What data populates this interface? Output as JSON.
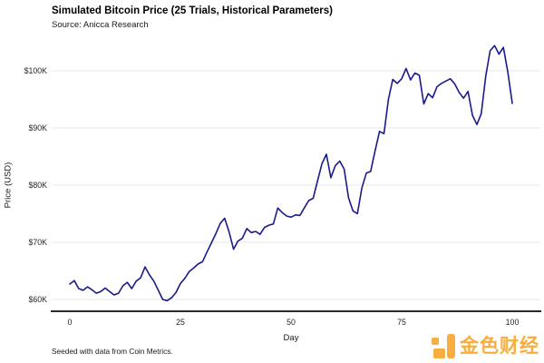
{
  "header": {
    "title": "Simulated Bitcoin Price (25 Trials, Historical Parameters)",
    "source": "Source: Anicca Research"
  },
  "chart_data": {
    "type": "line",
    "title": "Simulated Bitcoin Price (25 Trials, Historical Parameters)",
    "subtitle": "Source: Anicca Research",
    "xlabel": "Day",
    "ylabel": "Price (USD)",
    "x_ticks": {
      "values": [
        0,
        25,
        50,
        75,
        100
      ],
      "labels": [
        "0",
        "25",
        "50",
        "75",
        "100"
      ]
    },
    "y_ticks": {
      "values": [
        100,
        90,
        80,
        70,
        60
      ],
      "labels": [
        "$100K",
        "$90K",
        "$80K",
        "$70K",
        "$60K"
      ]
    },
    "x_range": [
      0,
      100
    ],
    "grid": true,
    "legend_position": "none",
    "line_color": "#1a1a8c",
    "grid_color": "#e7e7e7",
    "axis_color": "#2b2b2b",
    "series": [
      {
        "name": "simulated-price-trial",
        "x_start_day": 0,
        "x_step_days": 1,
        "values_usd_k": [
          62.7,
          63.3,
          61.9,
          61.6,
          62.2,
          61.7,
          61.1,
          61.4,
          62.0,
          61.4,
          60.8,
          61.1,
          62.4,
          63.0,
          61.9,
          63.2,
          63.8,
          65.7,
          64.3,
          63.2,
          61.6,
          60.0,
          59.8,
          60.3,
          61.2,
          62.8,
          63.7,
          64.9,
          65.5,
          66.2,
          66.6,
          68.3,
          69.9,
          71.5,
          73.3,
          74.2,
          71.8,
          68.8,
          70.2,
          70.7,
          72.4,
          71.7,
          71.9,
          71.4,
          72.6,
          73.0,
          73.2,
          76.0,
          75.2,
          74.6,
          74.4,
          74.8,
          74.7,
          76.0,
          77.3,
          77.7,
          80.8,
          83.8,
          85.4,
          81.3,
          83.4,
          84.2,
          82.8,
          77.8,
          75.5,
          75.0,
          79.5,
          82.1,
          82.4,
          86.0,
          89.4,
          89.0,
          95.0,
          98.5,
          97.8,
          98.6,
          100.4,
          98.4,
          99.6,
          99.2,
          94.2,
          96.0,
          95.3,
          97.2,
          97.8,
          98.2,
          98.6,
          97.7,
          96.2,
          95.2,
          96.4,
          92.2,
          90.6,
          92.5,
          99.0,
          103.5,
          104.4,
          102.9,
          104.1,
          99.8,
          94.3
        ]
      }
    ]
  },
  "footer": {
    "note": "Seeded with data from Coin Metrics.",
    "logo_text": "金色财经",
    "logo_color": "#f7a72f"
  }
}
